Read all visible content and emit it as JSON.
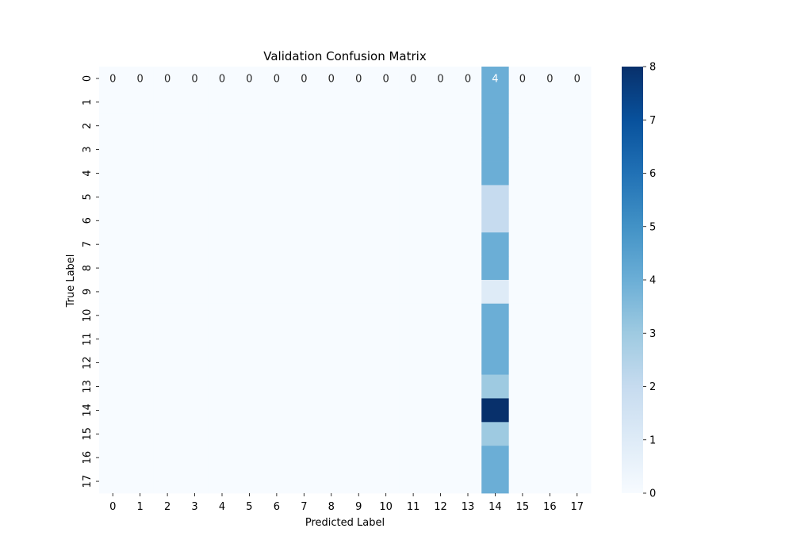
{
  "chart_data": {
    "type": "heatmap",
    "title": "Validation Confusion Matrix",
    "xlabel": "Predicted Label",
    "ylabel": "True Label",
    "x_categories": [
      "0",
      "1",
      "2",
      "3",
      "4",
      "5",
      "6",
      "7",
      "8",
      "9",
      "10",
      "11",
      "12",
      "13",
      "14",
      "15",
      "16",
      "17"
    ],
    "y_categories": [
      "0",
      "1",
      "2",
      "3",
      "4",
      "5",
      "6",
      "7",
      "8",
      "9",
      "10",
      "11",
      "12",
      "13",
      "14",
      "15",
      "16",
      "17"
    ],
    "matrix": [
      [
        0,
        0,
        0,
        0,
        0,
        0,
        0,
        0,
        0,
        0,
        0,
        0,
        0,
        0,
        4,
        0,
        0,
        0
      ],
      [
        0,
        0,
        0,
        0,
        0,
        0,
        0,
        0,
        0,
        0,
        0,
        0,
        0,
        0,
        4,
        0,
        0,
        0
      ],
      [
        0,
        0,
        0,
        0,
        0,
        0,
        0,
        0,
        0,
        0,
        0,
        0,
        0,
        0,
        4,
        0,
        0,
        0
      ],
      [
        0,
        0,
        0,
        0,
        0,
        0,
        0,
        0,
        0,
        0,
        0,
        0,
        0,
        0,
        4,
        0,
        0,
        0
      ],
      [
        0,
        0,
        0,
        0,
        0,
        0,
        0,
        0,
        0,
        0,
        0,
        0,
        0,
        0,
        4,
        0,
        0,
        0
      ],
      [
        0,
        0,
        0,
        0,
        0,
        0,
        0,
        0,
        0,
        0,
        0,
        0,
        0,
        0,
        2,
        0,
        0,
        0
      ],
      [
        0,
        0,
        0,
        0,
        0,
        0,
        0,
        0,
        0,
        0,
        0,
        0,
        0,
        0,
        2,
        0,
        0,
        0
      ],
      [
        0,
        0,
        0,
        0,
        0,
        0,
        0,
        0,
        0,
        0,
        0,
        0,
        0,
        0,
        4,
        0,
        0,
        0
      ],
      [
        0,
        0,
        0,
        0,
        0,
        0,
        0,
        0,
        0,
        0,
        0,
        0,
        0,
        0,
        4,
        0,
        0,
        0
      ],
      [
        0,
        0,
        0,
        0,
        0,
        0,
        0,
        0,
        0,
        0,
        0,
        0,
        0,
        0,
        1,
        0,
        0,
        0
      ],
      [
        0,
        0,
        0,
        0,
        0,
        0,
        0,
        0,
        0,
        0,
        0,
        0,
        0,
        0,
        4,
        0,
        0,
        0
      ],
      [
        0,
        0,
        0,
        0,
        0,
        0,
        0,
        0,
        0,
        0,
        0,
        0,
        0,
        0,
        4,
        0,
        0,
        0
      ],
      [
        0,
        0,
        0,
        0,
        0,
        0,
        0,
        0,
        0,
        0,
        0,
        0,
        0,
        0,
        4,
        0,
        0,
        0
      ],
      [
        0,
        0,
        0,
        0,
        0,
        0,
        0,
        0,
        0,
        0,
        0,
        0,
        0,
        0,
        3,
        0,
        0,
        0
      ],
      [
        0,
        0,
        0,
        0,
        0,
        0,
        0,
        0,
        0,
        0,
        0,
        0,
        0,
        0,
        8,
        0,
        0,
        0
      ],
      [
        0,
        0,
        0,
        0,
        0,
        0,
        0,
        0,
        0,
        0,
        0,
        0,
        0,
        0,
        3,
        0,
        0,
        0
      ],
      [
        0,
        0,
        0,
        0,
        0,
        0,
        0,
        0,
        0,
        0,
        0,
        0,
        0,
        0,
        4,
        0,
        0,
        0
      ],
      [
        0,
        0,
        0,
        0,
        0,
        0,
        0,
        0,
        0,
        0,
        0,
        0,
        0,
        0,
        4,
        0,
        0,
        0
      ]
    ],
    "annotated_rows": [
      0
    ],
    "colorbar": {
      "min": 0,
      "max": 8,
      "ticks": [
        0,
        1,
        2,
        3,
        4,
        5,
        6,
        7,
        8
      ]
    },
    "colormap": "Blues",
    "grid": false,
    "legend": "colorbar-right"
  }
}
